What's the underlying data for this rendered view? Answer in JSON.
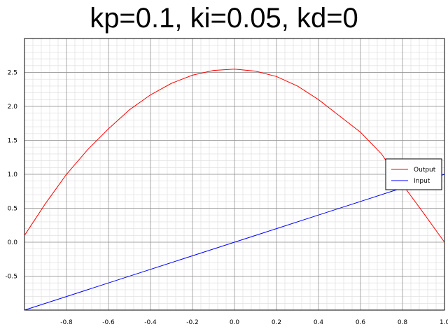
{
  "chart_data": {
    "type": "line",
    "title": "kp=0.1, ki=0.05, kd=0",
    "xlabel": "",
    "ylabel": "",
    "xlim": [
      -1.0,
      1.0
    ],
    "ylim": [
      -1.0,
      3.0
    ],
    "x_ticks": [
      -0.8,
      -0.6,
      -0.4,
      -0.2,
      0.0,
      0.2,
      0.4,
      0.6,
      0.8,
      1.0
    ],
    "x_tick_labels": [
      "-0.8",
      "-0.6",
      "-0.4",
      "-0.2",
      "0.0",
      "0.2",
      "0.4",
      "0.6",
      "0.8",
      "1.0"
    ],
    "y_ticks": [
      -0.5,
      0.0,
      0.5,
      1.0,
      1.5,
      2.0,
      2.5
    ],
    "y_tick_labels": [
      "-0.5",
      "0.0",
      "0.5",
      "1.0",
      "1.5",
      "2.0",
      "2.5"
    ],
    "grid": true,
    "legend_position": "right",
    "series": [
      {
        "name": "Output",
        "color": "#ff0000",
        "x": [
          -1.0,
          -0.9,
          -0.8,
          -0.7,
          -0.6,
          -0.5,
          -0.4,
          -0.3,
          -0.2,
          -0.1,
          0.0,
          0.1,
          0.2,
          0.3,
          0.4,
          0.5,
          0.6,
          0.7,
          0.8,
          0.9,
          1.0
        ],
        "values": [
          0.1,
          0.57,
          1.0,
          1.36,
          1.67,
          1.95,
          2.17,
          2.34,
          2.46,
          2.53,
          2.55,
          2.52,
          2.44,
          2.3,
          2.1,
          1.86,
          1.62,
          1.3,
          0.85,
          0.43,
          0.0
        ]
      },
      {
        "name": "Input",
        "color": "#0000ff",
        "x": [
          -1.0,
          -0.8,
          -0.6,
          -0.4,
          -0.2,
          0.0,
          0.2,
          0.4,
          0.6,
          0.8,
          1.0
        ],
        "values": [
          -1.0,
          -0.8,
          -0.6,
          -0.4,
          -0.2,
          0.0,
          0.2,
          0.4,
          0.6,
          0.8,
          1.0
        ]
      }
    ]
  }
}
